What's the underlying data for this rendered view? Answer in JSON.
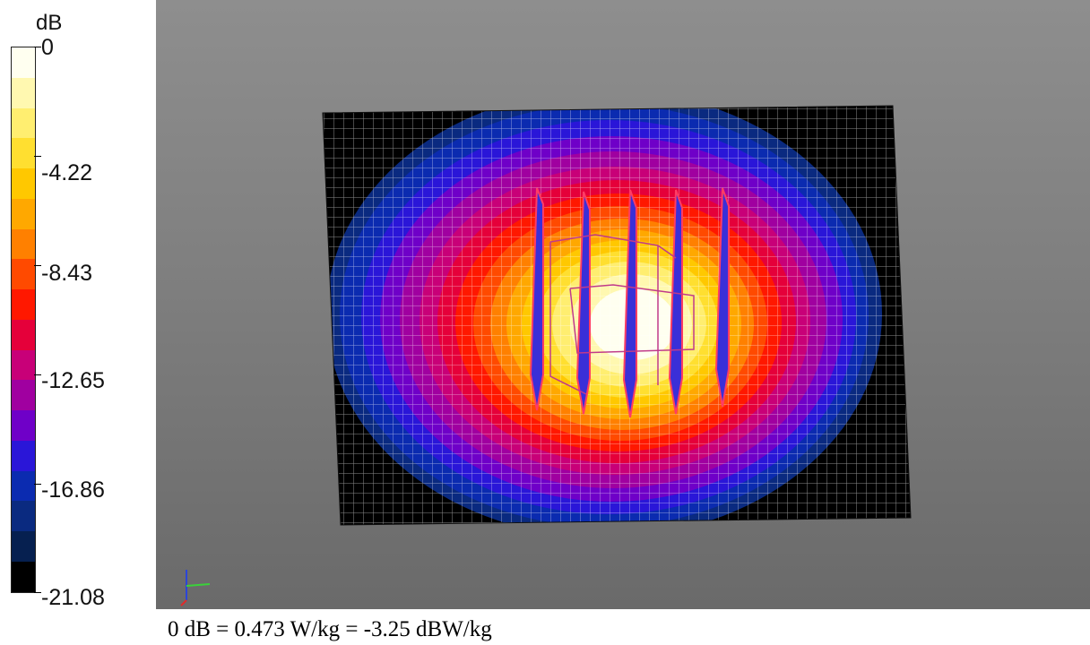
{
  "colorbar": {
    "unit": "dB",
    "labels": [
      "0",
      "-4.22",
      "-8.43",
      "-12.65",
      "-16.86",
      "-21.08"
    ],
    "colors": [
      "#fffff0",
      "#fff8b0",
      "#ffee70",
      "#ffdf30",
      "#ffc800",
      "#ffa800",
      "#ff8000",
      "#ff4a00",
      "#ff1800",
      "#e5003a",
      "#c80078",
      "#a000a0",
      "#6f00c8",
      "#2a16d8",
      "#0b2bb0",
      "#0a2a80",
      "#062050",
      "#000000"
    ]
  },
  "caption": "0 dB = 0.473 W/kg = -3.25 dBW/kg",
  "viewport": {
    "background": "#808080",
    "axis_icon": "axes-triad-icon"
  }
}
